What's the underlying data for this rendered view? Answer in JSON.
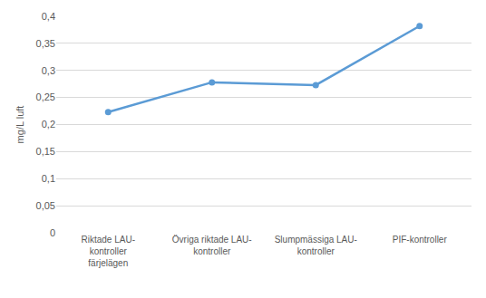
{
  "chart_data": {
    "type": "line",
    "y_label": "mg/L luft",
    "categories": [
      "Riktade LAU-\nkontroller\nfärjelägen",
      "Övriga riktade LAU-\nkontroller",
      "Slumpmässiga LAU-\nkontroller",
      "PIF-kontroller"
    ],
    "values": [
      0.223,
      0.278,
      0.273,
      0.382
    ],
    "color": "#5b9bd5",
    "marker": "circle",
    "ylim": [
      0,
      0.4
    ],
    "yticks": [
      0,
      {
        "value": 0.05,
        "label": "0,05"
      },
      {
        "value": 0.1,
        "label": "0,1"
      },
      {
        "value": 0.15,
        "label": "0,15"
      },
      {
        "value": 0.2,
        "label": "0,2"
      },
      {
        "value": 0.25,
        "label": "0,25"
      },
      {
        "value": 0.3,
        "label": "0,3"
      },
      {
        "value": 0.35,
        "label": "0,35"
      },
      {
        "value": 0.4,
        "label": "0,4"
      }
    ],
    "grid": true
  }
}
